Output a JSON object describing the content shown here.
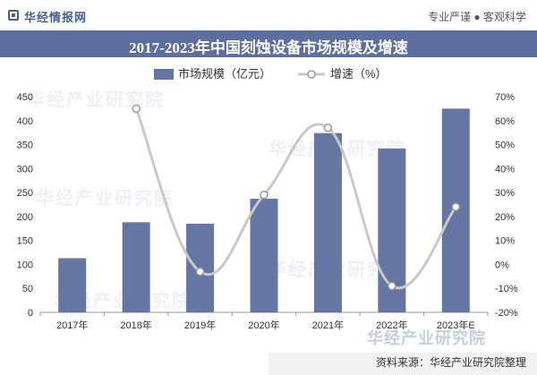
{
  "header": {
    "brand": "华经情报网",
    "slogan": "专业严谨 ● 客观科学",
    "title": "2017-2023年中国刻蚀设备市场规模及增速"
  },
  "footer": {
    "source": "资料来源：华经产业研究院整理"
  },
  "watermark": {
    "text": "华经产业研究院",
    "bottom_text": "华经产业研究院"
  },
  "colors": {
    "bar": "#6576a2",
    "line": "#c9c9c9",
    "marker_fill": "#ffffff",
    "marker_stroke": "#9a9a9a",
    "title_bar": "#5c6f9e"
  },
  "chart_data": {
    "type": "bar",
    "categories": [
      "2017年",
      "2018年",
      "2019年",
      "2020年",
      "2021年",
      "2022年",
      "2023年E"
    ],
    "series": [
      {
        "name": "市场规模（亿元）",
        "type": "bar",
        "axis": "left",
        "values": [
          113,
          188,
          185,
          237,
          374,
          342,
          425
        ]
      },
      {
        "name": "增速（%）",
        "type": "line",
        "axis": "right",
        "values": [
          null,
          65,
          -3,
          29,
          57,
          -9,
          24
        ]
      }
    ],
    "y_left": {
      "min": 0,
      "max": 450,
      "step": 50
    },
    "y_right": {
      "min": -20,
      "max": 70,
      "step": 10,
      "unit": "%"
    },
    "legend_position": "top-center",
    "grid": false
  }
}
